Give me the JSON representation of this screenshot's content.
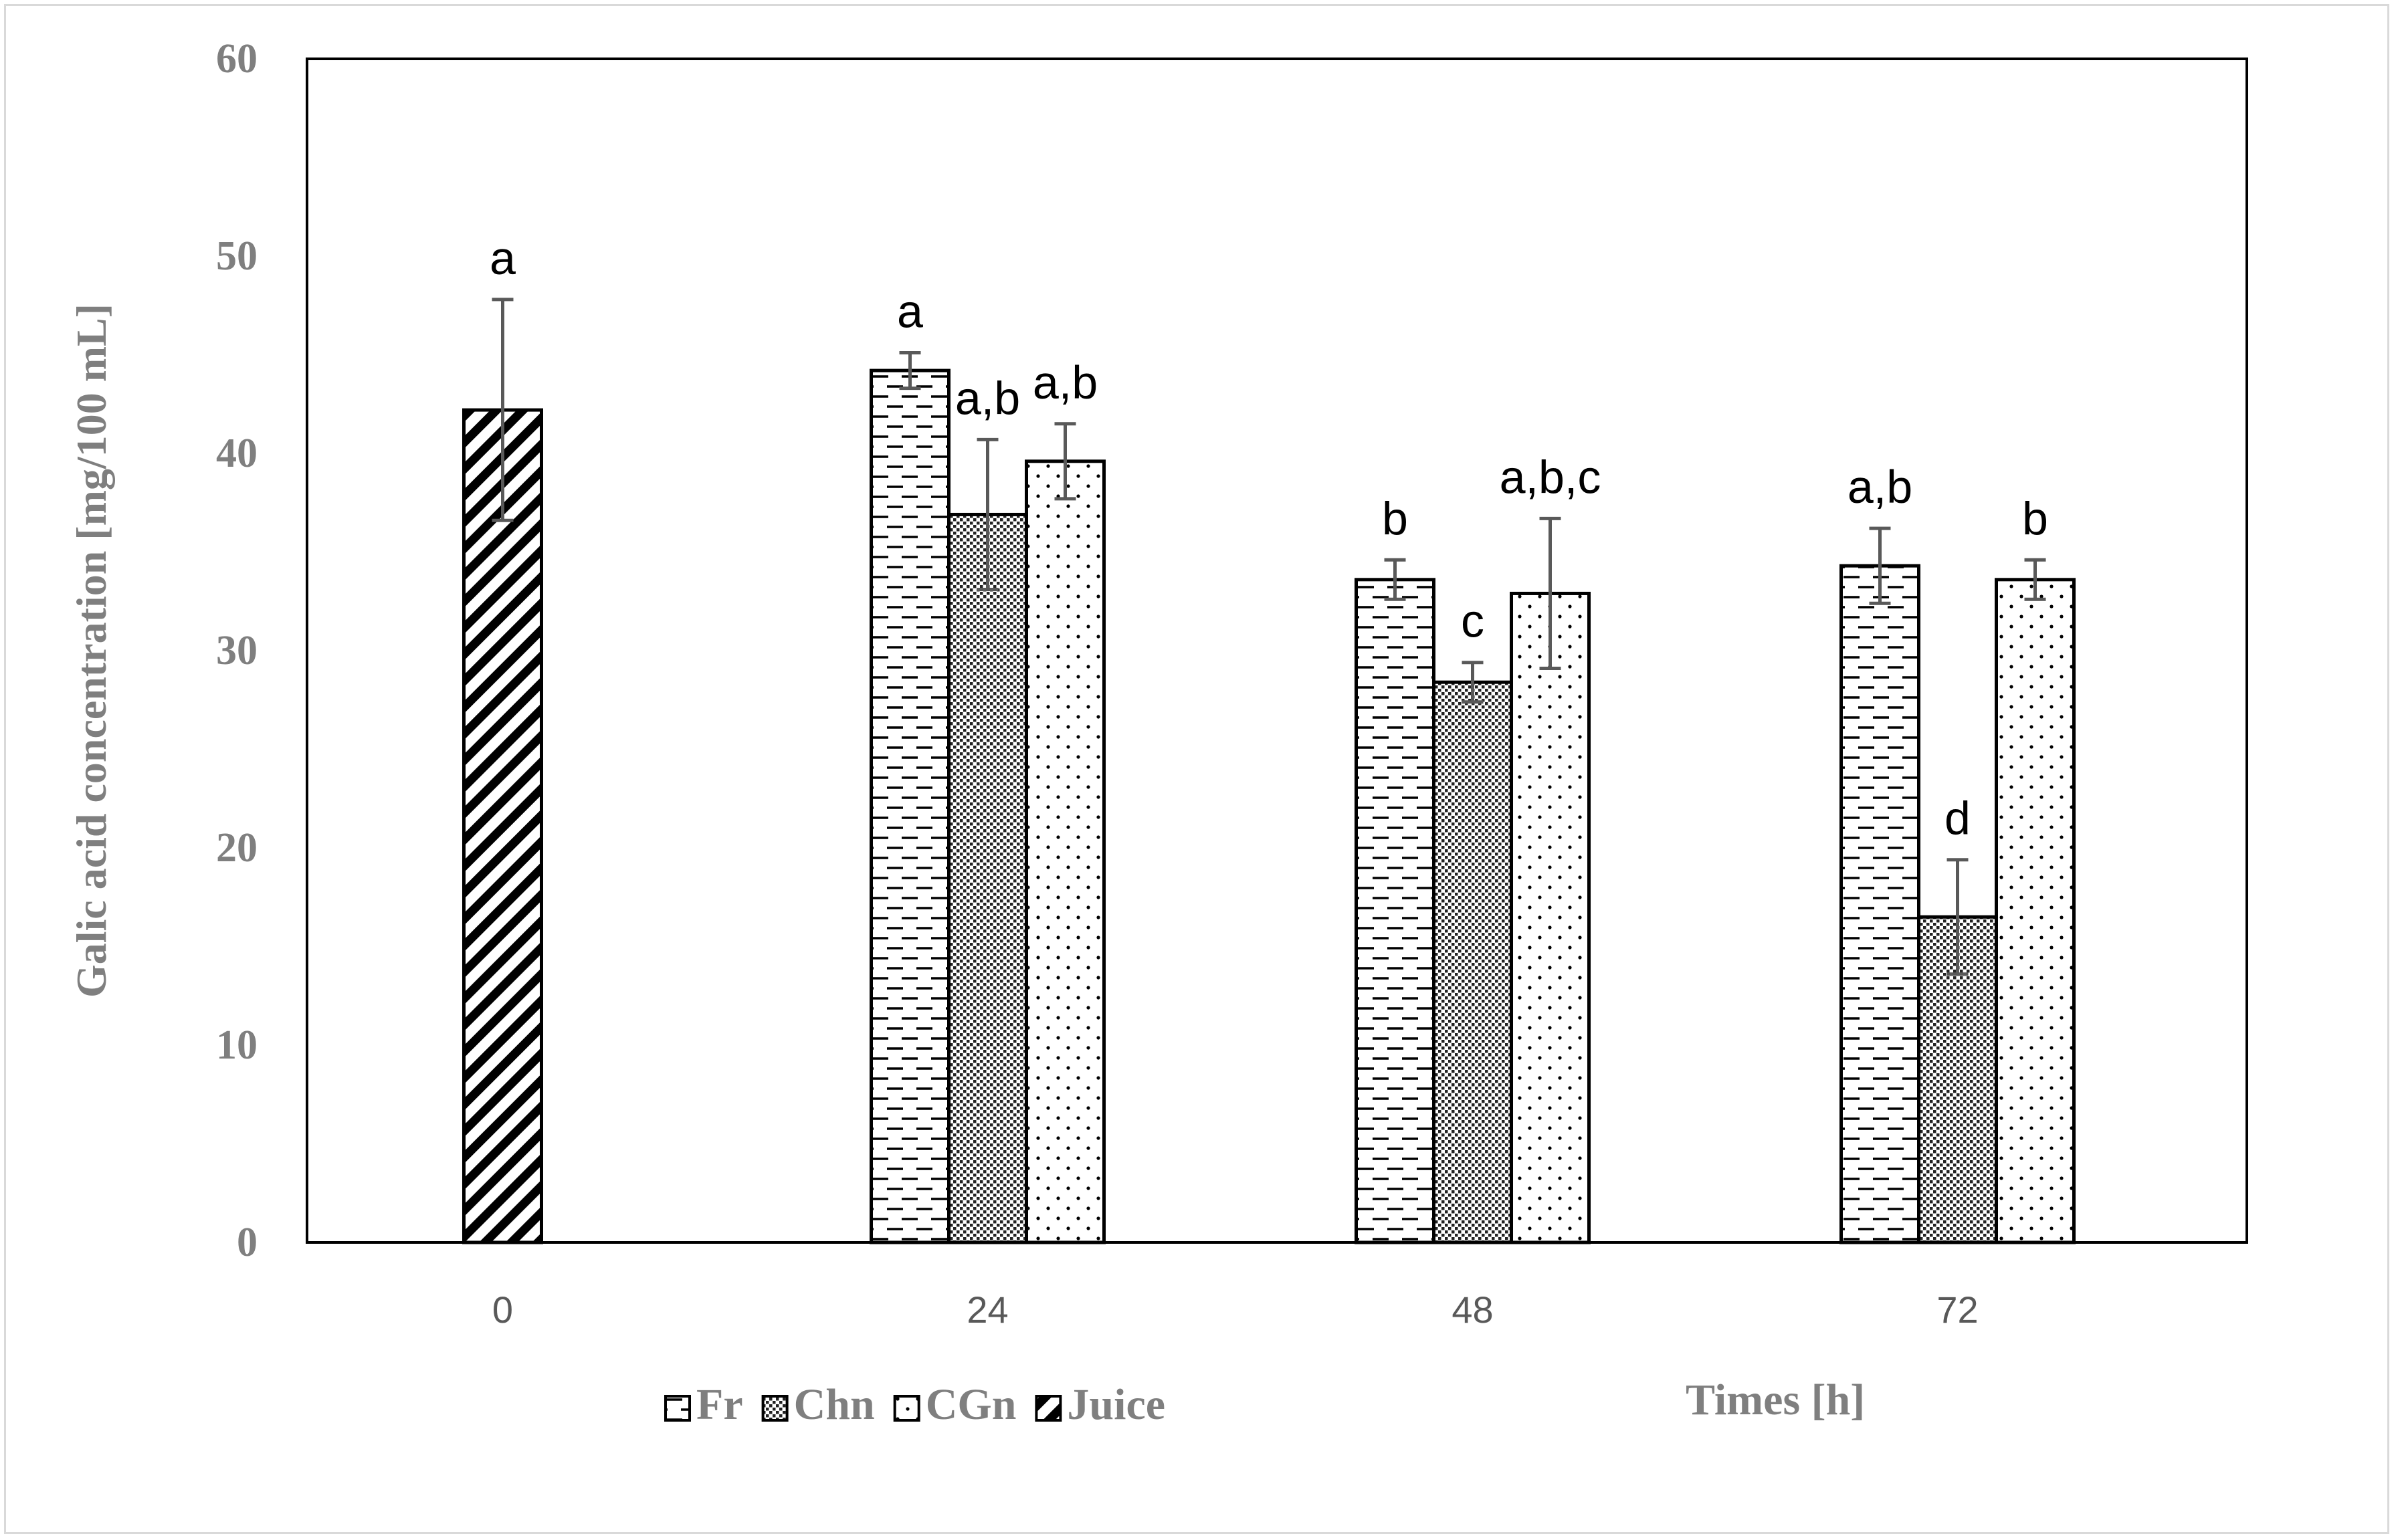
{
  "chart_data": {
    "type": "bar",
    "title": "",
    "xlabel": "Times [h]",
    "ylabel": "Galic acid concentration [mg/100 mL]",
    "categories": [
      "0",
      "24",
      "48",
      "72"
    ],
    "ylim": [
      0,
      60
    ],
    "yticks": [
      0,
      10,
      20,
      30,
      40,
      50,
      60
    ],
    "grid": false,
    "legend_position": "bottom",
    "series": [
      {
        "name": "Fr",
        "pattern": "dashes",
        "values": [
          null,
          44.2,
          33.6,
          34.3
        ],
        "errors": [
          null,
          0.9,
          1.0,
          1.9
        ],
        "labels": [
          "",
          "a",
          "b",
          "a,b"
        ]
      },
      {
        "name": "Chn",
        "pattern": "dots-dense",
        "values": [
          null,
          36.9,
          28.4,
          16.5
        ],
        "errors": [
          null,
          3.8,
          1.0,
          2.9
        ],
        "labels": [
          "",
          "a,b",
          "c",
          "d"
        ]
      },
      {
        "name": "CGn",
        "pattern": "dots-sparse",
        "values": [
          null,
          39.6,
          32.9,
          33.6
        ],
        "errors": [
          null,
          1.9,
          3.8,
          1.0
        ],
        "labels": [
          "",
          "a,b",
          "a,b,c",
          "b"
        ]
      },
      {
        "name": "Juice",
        "pattern": "diagonal-stripes",
        "values": [
          42.2,
          null,
          null,
          null
        ],
        "errors": [
          5.6,
          null,
          null,
          null
        ],
        "labels": [
          "a",
          "",
          "",
          ""
        ]
      }
    ]
  }
}
